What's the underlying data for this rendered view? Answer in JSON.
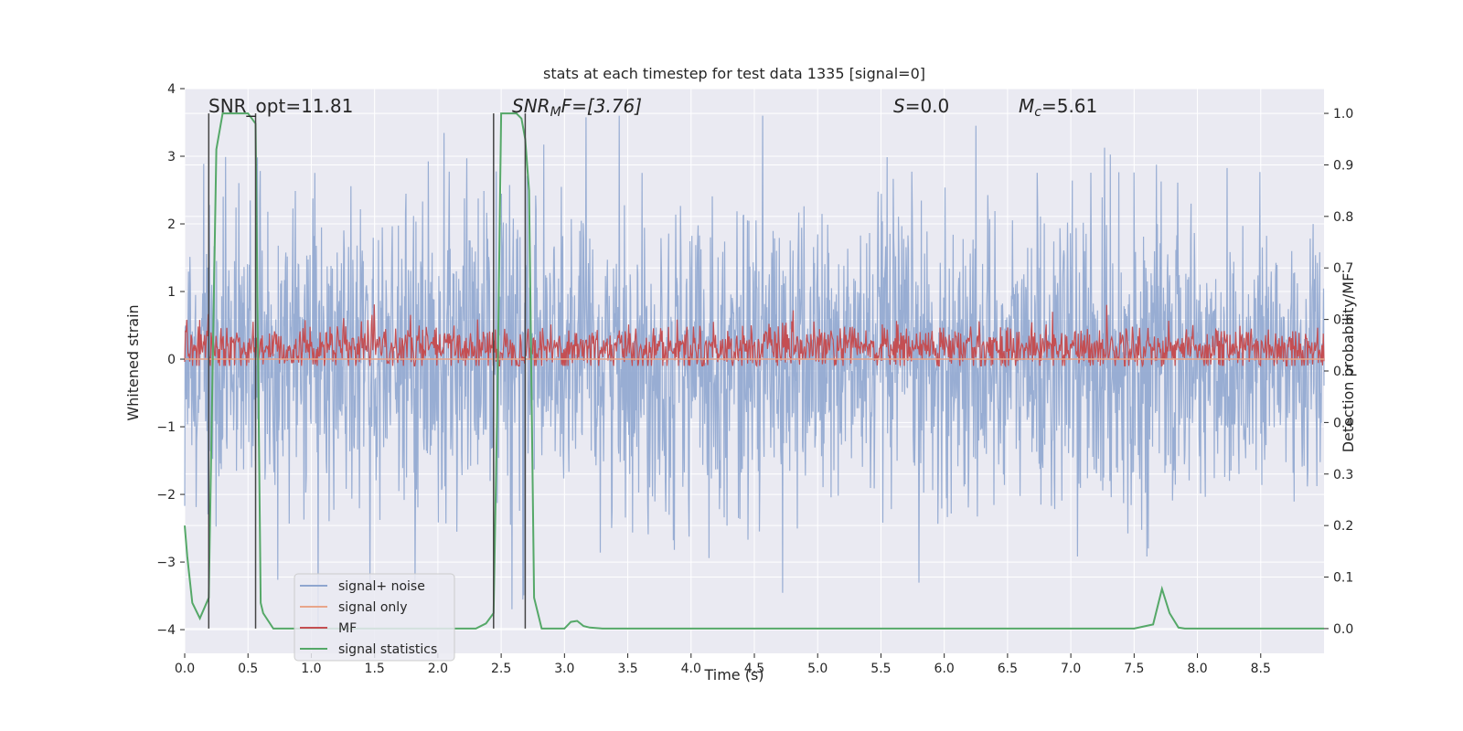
{
  "chart_data": {
    "type": "line",
    "title": "stats at each timestep for test data 1335 [signal=0]",
    "xlabel": "Time (s)",
    "ylabel_left": "Whitened strain",
    "ylabel_right": "Detection probability/MF",
    "xlim": [
      0.0,
      9.0
    ],
    "ylim_left": [
      -4.35,
      4.0
    ],
    "ylim_right": [
      -0.048,
      1.048
    ],
    "x_ticks": [
      "0.0",
      "0.5",
      "1.0",
      "1.5",
      "2.0",
      "2.5",
      "3.0",
      "3.5",
      "4.0",
      "4.5",
      "5.0",
      "5.5",
      "6.0",
      "6.5",
      "7.0",
      "7.5",
      "8.0",
      "8.5"
    ],
    "y_ticks_left": [
      "4",
      "3",
      "2",
      "1",
      "0",
      "−1",
      "−2",
      "−3",
      "−4"
    ],
    "y_ticks_right": [
      "1.0",
      "0.9",
      "0.8",
      "0.7",
      "0.6",
      "0.5",
      "0.4",
      "0.3",
      "0.2",
      "0.1",
      "0.0"
    ],
    "grid": true,
    "legend_position": "lower-left",
    "annotations": {
      "snr_opt": "SNR_opt=11.81",
      "snr_mf_base": "SNR",
      "snr_mf_sub": "M",
      "snr_mf_rest": "F=[3.76]",
      "s_italic": "S",
      "s_rest": "=0.0",
      "mc_base": "M",
      "mc_sub": "c",
      "mc_rest": "=5.61"
    },
    "vertical_markers_s": [
      0.19,
      0.56,
      2.44,
      2.69
    ],
    "series": [
      {
        "name": "signal+ noise",
        "color": "#8fa6cf",
        "axis": "left",
        "description_values": {
          "mean": 0.0,
          "std": 1.0,
          "typical_max": 3.6,
          "typical_min": -4.0
        }
      },
      {
        "name": "signal only",
        "color": "#e8a58a",
        "axis": "left",
        "values_constant": 0.0
      },
      {
        "name": "MF",
        "color": "#c44e52",
        "axis": "right",
        "description_values": {
          "mean": 0.545,
          "min": 0.51,
          "max": 0.63
        }
      },
      {
        "name": "signal statistics",
        "color": "#55a868",
        "axis": "right",
        "x": [
          0.0,
          0.02,
          0.06,
          0.12,
          0.19,
          0.25,
          0.3,
          0.35,
          0.45,
          0.5,
          0.53,
          0.56,
          0.6,
          0.62,
          0.7,
          0.8,
          0.9,
          1.0,
          1.5,
          2.0,
          2.3,
          2.38,
          2.44,
          2.47,
          2.5,
          2.55,
          2.62,
          2.66,
          2.69,
          2.72,
          2.76,
          2.82,
          2.9,
          3.0,
          3.05,
          3.1,
          3.15,
          3.2,
          3.3,
          3.5,
          4.0,
          5.0,
          6.0,
          7.0,
          7.5,
          7.65,
          7.72,
          7.78,
          7.85,
          7.9,
          8.0,
          8.5,
          9.0
        ],
        "values": [
          0.2,
          0.14,
          0.05,
          0.02,
          0.06,
          0.93,
          1.0,
          1.0,
          1.0,
          1.0,
          0.99,
          0.98,
          0.05,
          0.03,
          0.0,
          0.0,
          0.0,
          0.0,
          0.0,
          0.0,
          0.0,
          0.01,
          0.03,
          0.45,
          1.0,
          1.0,
          1.0,
          0.99,
          0.95,
          0.85,
          0.06,
          0.0,
          0.0,
          0.0,
          0.013,
          0.015,
          0.005,
          0.002,
          0.0,
          0.0,
          0.0,
          0.0,
          0.0,
          0.0,
          0.0,
          0.008,
          0.077,
          0.03,
          0.002,
          0.0,
          0.0,
          0.0,
          0.0
        ]
      }
    ]
  }
}
